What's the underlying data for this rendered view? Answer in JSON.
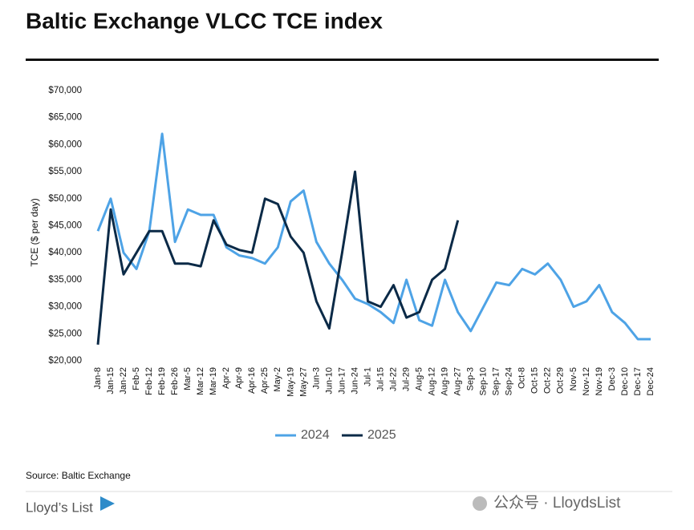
{
  "chart_data": {
    "type": "line",
    "title": "Baltic Exchange VLCC TCE index",
    "y_label": "TCE ($ per day)",
    "source": "Source: Baltic Exchange",
    "brand": "Lloyd’s List",
    "watermark": "公众号 · LloydsList",
    "categories": [
      "Jan-8",
      "Jan-15",
      "Jan-22",
      "Feb-5",
      "Feb-12",
      "Feb-19",
      "Feb-26",
      "Mar-5",
      "Mar-12",
      "Mar-19",
      "Apr-2",
      "Apr-9",
      "Apr-16",
      "Apr-25",
      "May-2",
      "May-19",
      "May-27",
      "Jun-3",
      "Jun-10",
      "Jun-17",
      "Jun-24",
      "Jul-1",
      "Jul-15",
      "Jul-22",
      "Jul-29",
      "Aug-5",
      "Aug-12",
      "Aug-19",
      "Aug-27",
      "Sep-3",
      "Sep-10",
      "Sep-17",
      "Sep-24",
      "Oct-8",
      "Oct-15",
      "Oct-22",
      "Oct-29",
      "Nov-5",
      "Nov-12",
      "Nov-19",
      "Dec-3",
      "Dec-10",
      "Dec-17",
      "Dec-24"
    ],
    "series": [
      {
        "name": "2024",
        "color": "#4ea3e6",
        "values": [
          44000,
          50000,
          40000,
          37000,
          44000,
          62000,
          42000,
          48000,
          47000,
          47000,
          41000,
          39500,
          39000,
          38000,
          41000,
          49500,
          51500,
          42000,
          38000,
          35000,
          31500,
          30500,
          29000,
          27000,
          35000,
          27500,
          26500,
          35000,
          29000,
          25500,
          30000,
          34500,
          34000,
          37000,
          36000,
          38000,
          35000,
          30000,
          31000,
          34000,
          29000,
          27000,
          24000,
          24000
        ]
      },
      {
        "name": "2025",
        "color": "#0b2a47",
        "values": [
          23000,
          48000,
          36000,
          40000,
          44000,
          44000,
          38000,
          38000,
          37500,
          46000,
          41500,
          40500,
          40000,
          50000,
          49000,
          43000,
          40000,
          31000,
          26000,
          40000,
          55000,
          31000,
          30000,
          34000,
          28000,
          29000,
          35000,
          37000,
          46000,
          null,
          null,
          null,
          null,
          null,
          null,
          null,
          null,
          null,
          null,
          null,
          null,
          null,
          null,
          null
        ]
      }
    ],
    "ylim": [
      20000,
      70000
    ],
    "yticks": [
      {
        "value": 20000,
        "label": "$20,000"
      },
      {
        "value": 25000,
        "label": "$25,000"
      },
      {
        "value": 30000,
        "label": "$30,000"
      },
      {
        "value": 35000,
        "label": "$35,000"
      },
      {
        "value": 40000,
        "label": "$40,000"
      },
      {
        "value": 45000,
        "label": "$45,000"
      },
      {
        "value": 50000,
        "label": "$50,000"
      },
      {
        "value": 55000,
        "label": "$55,000"
      },
      {
        "value": 60000,
        "label": "$60,000"
      },
      {
        "value": 65000,
        "label": "$65,000"
      },
      {
        "value": 70000,
        "label": "$70,000"
      }
    ],
    "grid": false,
    "legend": "bottom"
  }
}
